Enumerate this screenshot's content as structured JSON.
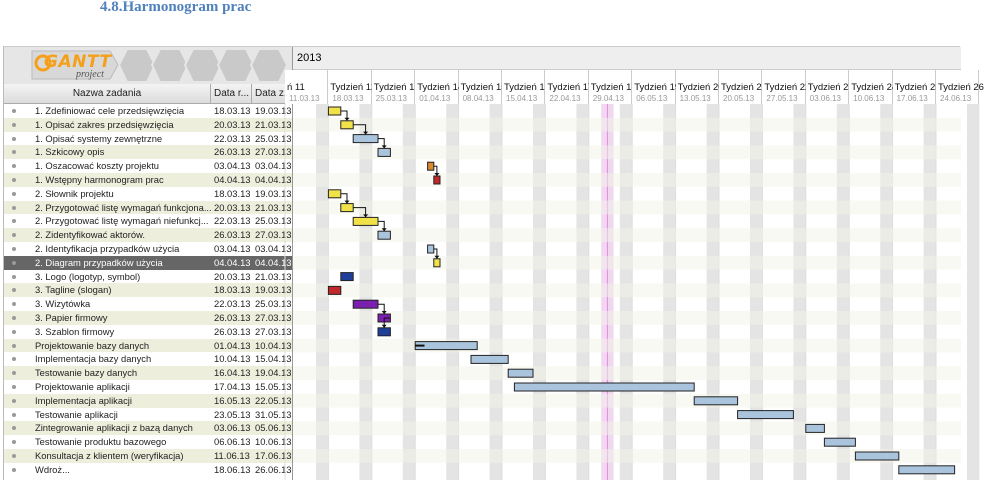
{
  "heading": "4.8.Harmonogram prac",
  "logo": {
    "text": "GANTT",
    "sub": "project"
  },
  "columns": {
    "name": "Nazwa zadania",
    "start": "Data r...",
    "end": "Data z..."
  },
  "year": "2013",
  "weeks": [
    {
      "label": "ń 11",
      "date": "11.03.13"
    },
    {
      "label": "Tydzień 12",
      "date": "18.03.13"
    },
    {
      "label": "Tydzień 13",
      "date": "25.03.13"
    },
    {
      "label": "Tydzień 14",
      "date": "01.04.13"
    },
    {
      "label": "Tydzień 15",
      "date": "08.04.13"
    },
    {
      "label": "Tydzień 16",
      "date": "15.04.13"
    },
    {
      "label": "Tydzień 17",
      "date": "22.04.13"
    },
    {
      "label": "Tydzień 18",
      "date": "29.04.13"
    },
    {
      "label": "Tydzień 19",
      "date": "06.05.13"
    },
    {
      "label": "Tydzień 20",
      "date": "13.05.13"
    },
    {
      "label": "Tydzień 21",
      "date": "20.05.13"
    },
    {
      "label": "Tydzień 22",
      "date": "27.05.13"
    },
    {
      "label": "Tydzień 23",
      "date": "03.06.13"
    },
    {
      "label": "Tydzień 24",
      "date": "10.06.13"
    },
    {
      "label": "Tydzień 25",
      "date": "17.06.13"
    },
    {
      "label": "Tydzień 26",
      "date": "24.06.13"
    }
  ],
  "tasks": [
    {
      "name": "1. Zdefiniować cele przedsięwzięcia",
      "start": "18.03.13",
      "end": "19.03.13",
      "color": "#f2e24a"
    },
    {
      "name": "1. Opisać zakres przedsięwzięcia",
      "start": "20.03.13",
      "end": "21.03.13",
      "color": "#f2e24a"
    },
    {
      "name": "1. Opisać systemy zewnętrzne",
      "start": "22.03.13",
      "end": "25.03.13",
      "color": "#a9c4dc"
    },
    {
      "name": "1. Szkicowy opis",
      "start": "26.03.13",
      "end": "27.03.13",
      "color": "#a9c4dc"
    },
    {
      "name": "1. Oszacować koszty projektu",
      "start": "03.04.13",
      "end": "03.04.13",
      "color": "#d98a2e"
    },
    {
      "name": "1. Wstępny harmonogram prac",
      "start": "04.04.13",
      "end": "04.04.13",
      "color": "#c0282a"
    },
    {
      "name": "2. Słownik projektu",
      "start": "18.03.13",
      "end": "19.03.13",
      "color": "#f2e24a"
    },
    {
      "name": "2. Przygotować listę wymagań funkcjona...",
      "start": "20.03.13",
      "end": "21.03.13",
      "color": "#f2e24a"
    },
    {
      "name": "2. Przygotować listę wymagań niefunkcj...",
      "start": "22.03.13",
      "end": "25.03.13",
      "color": "#f2e24a"
    },
    {
      "name": "2. Zidentyfikować aktorów.",
      "start": "26.03.13",
      "end": "27.03.13",
      "color": "#a9c4dc"
    },
    {
      "name": "2. Identyfikacja przypadków użycia",
      "start": "03.04.13",
      "end": "03.04.13",
      "color": "#a9c4dc"
    },
    {
      "name": "2. Diagram przypadków użycia",
      "start": "04.04.13",
      "end": "04.04.13",
      "color": "#f2e24a",
      "selected": true
    },
    {
      "name": "3. Logo (logotyp, symbol)",
      "start": "20.03.13",
      "end": "21.03.13",
      "color": "#1f3f9a"
    },
    {
      "name": "3. Tagline (slogan)",
      "start": "18.03.13",
      "end": "19.03.13",
      "color": "#c0282a"
    },
    {
      "name": "3. Wizytówka",
      "start": "22.03.13",
      "end": "25.03.13",
      "color": "#7a1fb0"
    },
    {
      "name": "3. Papier firmowy",
      "start": "26.03.13",
      "end": "27.03.13",
      "color": "#7a1fb0"
    },
    {
      "name": "3. Szablon firmowy",
      "start": "26.03.13",
      "end": "27.03.13",
      "color": "#1f3f9a"
    },
    {
      "name": "Projektowanie bazy danych",
      "start": "01.04.13",
      "end": "10.04.13",
      "color": "#a9c4dc",
      "progress": true
    },
    {
      "name": "Implementacja bazy danych",
      "start": "10.04.13",
      "end": "15.04.13",
      "color": "#a9c4dc"
    },
    {
      "name": "Testowanie bazy danych",
      "start": "16.04.13",
      "end": "19.04.13",
      "color": "#a9c4dc"
    },
    {
      "name": "Projektowanie aplikacji",
      "start": "17.04.13",
      "end": "15.05.13",
      "color": "#a9c4dc"
    },
    {
      "name": "Implementacja aplikacji",
      "start": "16.05.13",
      "end": "22.05.13",
      "color": "#a9c4dc"
    },
    {
      "name": "Testowanie aplikacji",
      "start": "23.05.13",
      "end": "31.05.13",
      "color": "#a9c4dc"
    },
    {
      "name": "Zintegrowanie aplikacji z bazą danych",
      "start": "03.06.13",
      "end": "05.06.13",
      "color": "#a9c4dc"
    },
    {
      "name": "Testowanie produktu bazowego",
      "start": "06.06.13",
      "end": "10.06.13",
      "color": "#a9c4dc"
    },
    {
      "name": "Konsultacja z klientem (weryfikacja)",
      "start": "11.06.13",
      "end": "17.06.13",
      "color": "#a9c4dc"
    },
    {
      "name": "Wdroż...",
      "start": "18.06.13",
      "end": "26.06.13",
      "color": "#a9c4dc"
    }
  ]
}
